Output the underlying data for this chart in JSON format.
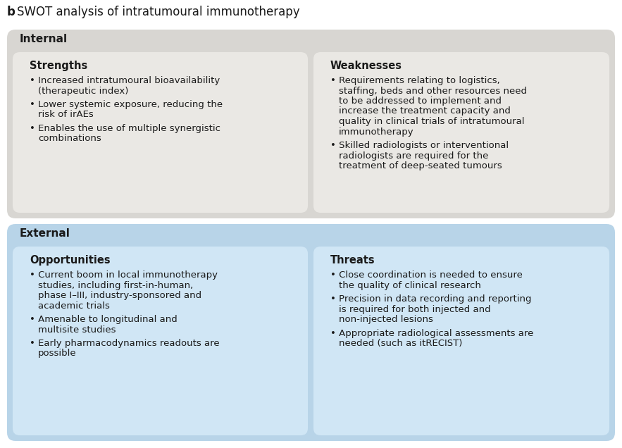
{
  "title_b": "b",
  "title_main": "SWOT analysis of intratumoural immunotherapy",
  "bg_color": "#ffffff",
  "internal_bg": "#d8d6d2",
  "external_bg": "#b8d4e8",
  "cell_bg_grey": "#eae8e4",
  "cell_bg_blue": "#d0e6f5",
  "internal_label": "Internal",
  "external_label": "External",
  "sections": [
    {
      "title": "Strengths",
      "bullets": [
        "Increased intratumoural bioavailability\n(therapeutic index)",
        "Lower systemic exposure, reducing the\nrisk of irAEs",
        "Enables the use of multiple synergistic\ncombinations"
      ]
    },
    {
      "title": "Weaknesses",
      "bullets": [
        "Requirements relating to logistics,\nstaffing, beds and other resources need\nto be addressed to implement and\nincrease the treatment capacity and\nquality in clinical trials of intratumoural\nimmunotherapy",
        "Skilled radiologists or interventional\nradiologists are required for the\ntreatment of deep-seated tumours"
      ]
    },
    {
      "title": "Opportunities",
      "bullets": [
        "Current boom in local immunotherapy\nstudies, including first-in-human,\nphase I–III, industry-sponsored and\nacademic trials",
        "Amenable to longitudinal and\nmultisite studies",
        "Early pharmacodynamics readouts are\npossible"
      ]
    },
    {
      "title": "Threats",
      "bullets": [
        "Close coordination is needed to ensure\nthe quality of clinical research",
        "Precision in data recording and reporting\nis required for both injected and\nnon-injected lesions",
        "Appropriate radiological assessments are\nneeded (such as itRECIST)"
      ]
    }
  ],
  "title_fontsize": 12,
  "label_fontsize": 11,
  "section_title_fontsize": 10.5,
  "bullet_fontsize": 9.5,
  "text_color": "#1a1a1a"
}
